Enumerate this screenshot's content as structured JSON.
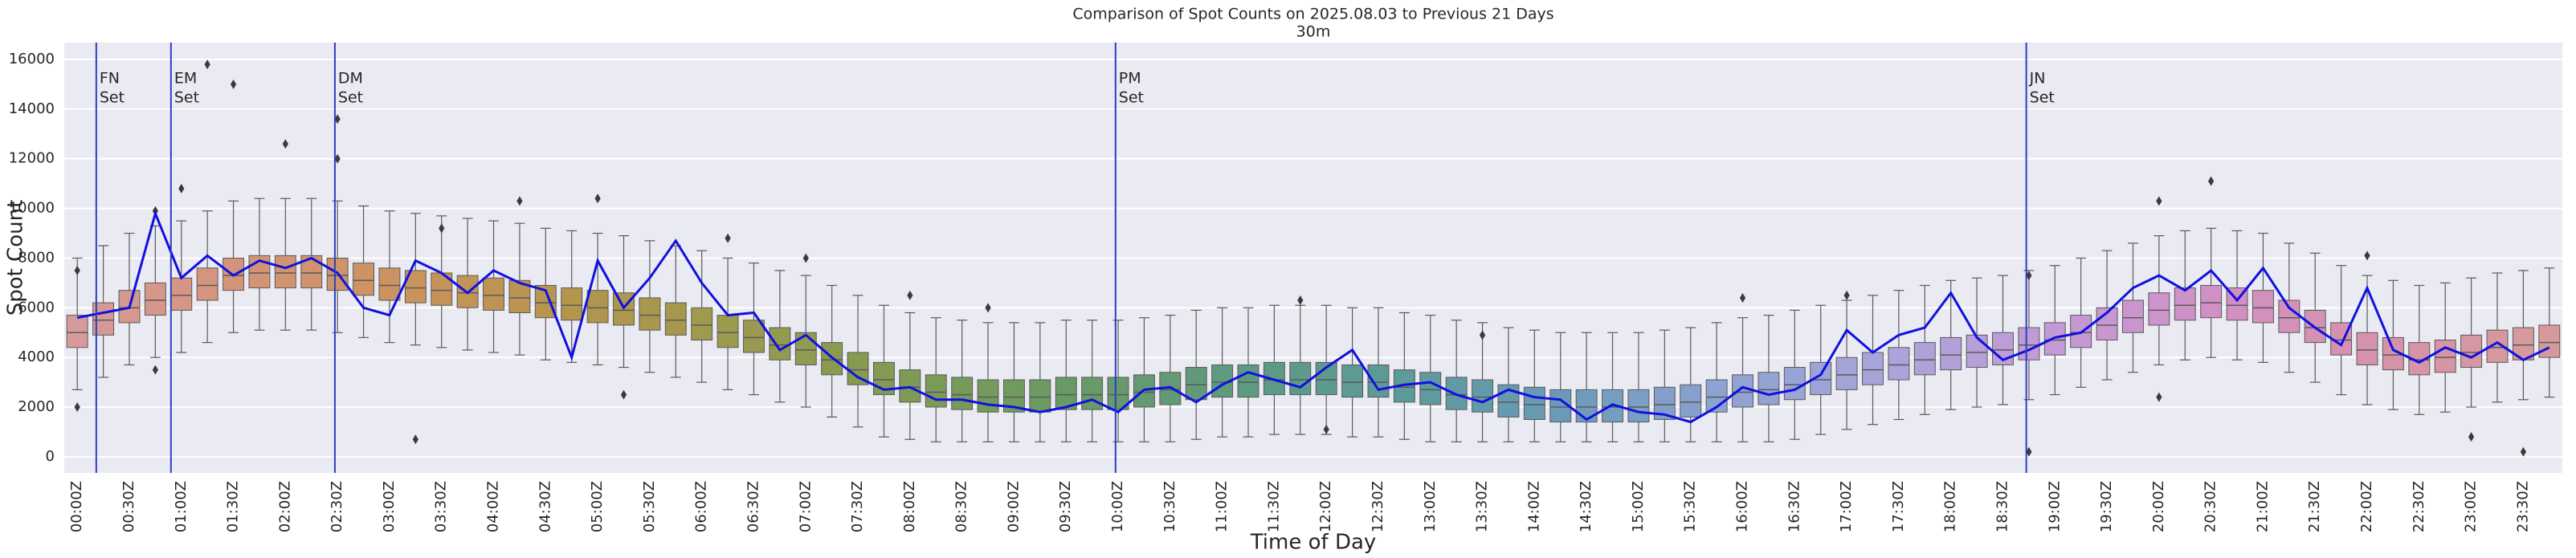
{
  "chart_data": {
    "type": "box",
    "title": "Comparison of Spot Counts on 2025.08.03 to Previous 21 Days",
    "subtitle": "30m",
    "x_label": "Time of Day",
    "y_label": "Spot Count",
    "categories": [
      "00:00Z",
      null,
      "00:30Z",
      null,
      "01:00Z",
      null,
      "01:30Z",
      null,
      "02:00Z",
      null,
      "02:30Z",
      null,
      "03:00Z",
      null,
      "03:30Z",
      null,
      "04:00Z",
      null,
      "04:30Z",
      null,
      "05:00Z",
      null,
      "05:30Z",
      null,
      "06:00Z",
      null,
      "06:30Z",
      null,
      "07:00Z",
      null,
      "07:30Z",
      null,
      "08:00Z",
      null,
      "08:30Z",
      null,
      "09:00Z",
      null,
      "09:30Z",
      null,
      "10:00Z",
      null,
      "10:30Z",
      null,
      "11:00Z",
      null,
      "11:30Z",
      null,
      "12:00Z",
      null,
      "12:30Z",
      null,
      "13:00Z",
      null,
      "13:30Z",
      null,
      "14:00Z",
      null,
      "14:30Z",
      null,
      "15:00Z",
      null,
      "15:30Z",
      null,
      "16:00Z",
      null,
      "16:30Z",
      null,
      "17:00Z",
      null,
      "17:30Z",
      null,
      "18:00Z",
      null,
      "18:30Z",
      null,
      "19:00Z",
      null,
      "19:30Z",
      null,
      "20:00Z",
      null,
      "20:30Z",
      null,
      "21:00Z",
      null,
      "21:30Z",
      null,
      "22:00Z",
      null,
      "22:30Z",
      null,
      "23:00Z",
      null,
      "23:30Z",
      null
    ],
    "boxes": {
      "whislo": [
        2700,
        3200,
        3700,
        4000,
        4200,
        4600,
        5000,
        5100,
        5100,
        5100,
        5000,
        4800,
        4600,
        4500,
        4400,
        4300,
        4200,
        4100,
        3900,
        3800,
        3700,
        3600,
        3400,
        3200,
        3000,
        2700,
        2500,
        2200,
        2000,
        1600,
        1200,
        800,
        700,
        600,
        600,
        600,
        600,
        600,
        600,
        600,
        600,
        600,
        600,
        700,
        800,
        800,
        900,
        900,
        900,
        800,
        800,
        700,
        600,
        600,
        600,
        600,
        600,
        600,
        600,
        600,
        600,
        600,
        600,
        600,
        600,
        600,
        700,
        900,
        1100,
        1300,
        1500,
        1700,
        1900,
        2000,
        2100,
        2300,
        2500,
        2800,
        3100,
        3400,
        3700,
        3900,
        4000,
        3900,
        3800,
        3400,
        3000,
        2500,
        2100,
        1900,
        1700,
        1800,
        2000,
        2200,
        2300,
        2400
      ],
      "q1": [
        4400,
        4900,
        5400,
        5700,
        5900,
        6300,
        6700,
        6800,
        6800,
        6800,
        6700,
        6500,
        6300,
        6200,
        6100,
        6000,
        5900,
        5800,
        5600,
        5500,
        5400,
        5300,
        5100,
        4900,
        4700,
        4400,
        4200,
        3900,
        3700,
        3300,
        2900,
        2500,
        2200,
        2000,
        1900,
        1800,
        1800,
        1800,
        1900,
        1900,
        1900,
        2000,
        2100,
        2300,
        2400,
        2400,
        2500,
        2500,
        2500,
        2400,
        2400,
        2200,
        2100,
        1900,
        1800,
        1600,
        1500,
        1400,
        1400,
        1400,
        1400,
        1500,
        1600,
        1800,
        2000,
        2100,
        2300,
        2500,
        2700,
        2900,
        3100,
        3300,
        3500,
        3600,
        3700,
        3900,
        4100,
        4400,
        4700,
        5000,
        5300,
        5500,
        5600,
        5500,
        5400,
        5000,
        4600,
        4100,
        3700,
        3500,
        3300,
        3400,
        3600,
        3800,
        3900,
        4000
      ],
      "med": [
        5000,
        5500,
        6000,
        6300,
        6500,
        6900,
        7300,
        7400,
        7400,
        7400,
        7300,
        7100,
        6900,
        6800,
        6700,
        6600,
        6500,
        6400,
        6200,
        6100,
        6000,
        5900,
        5700,
        5500,
        5300,
        5000,
        4800,
        4500,
        4300,
        3900,
        3500,
        3100,
        2800,
        2600,
        2500,
        2400,
        2400,
        2400,
        2500,
        2500,
        2500,
        2600,
        2700,
        2900,
        3000,
        3000,
        3100,
        3100,
        3100,
        3000,
        3000,
        2800,
        2700,
        2500,
        2400,
        2200,
        2100,
        2000,
        2000,
        2000,
        2000,
        2100,
        2200,
        2400,
        2600,
        2700,
        2900,
        3100,
        3300,
        3500,
        3700,
        3900,
        4100,
        4200,
        4300,
        4500,
        4700,
        5000,
        5300,
        5600,
        5900,
        6100,
        6200,
        6100,
        6000,
        5600,
        5200,
        4700,
        4300,
        4100,
        3900,
        4000,
        4200,
        4400,
        4500,
        4600
      ],
      "q3": [
        5700,
        6200,
        6700,
        7000,
        7200,
        7600,
        8000,
        8100,
        8100,
        8100,
        8000,
        7800,
        7600,
        7500,
        7400,
        7300,
        7200,
        7100,
        6900,
        6800,
        6700,
        6600,
        6400,
        6200,
        6000,
        5700,
        5500,
        5200,
        5000,
        4600,
        4200,
        3800,
        3500,
        3300,
        3200,
        3100,
        3100,
        3100,
        3200,
        3200,
        3200,
        3300,
        3400,
        3600,
        3700,
        3700,
        3800,
        3800,
        3800,
        3700,
        3700,
        3500,
        3400,
        3200,
        3100,
        2900,
        2800,
        2700,
        2700,
        2700,
        2700,
        2800,
        2900,
        3100,
        3300,
        3400,
        3600,
        3800,
        4000,
        4200,
        4400,
        4600,
        4800,
        4900,
        5000,
        5200,
        5400,
        5700,
        6000,
        6300,
        6600,
        6800,
        6900,
        6800,
        6700,
        6300,
        5900,
        5400,
        5000,
        4800,
        4600,
        4700,
        4900,
        5100,
        5200,
        5300
      ],
      "whishi": [
        8000,
        8500,
        9000,
        9300,
        9500,
        9900,
        10300,
        10400,
        10400,
        10400,
        10300,
        10100,
        9900,
        9800,
        9700,
        9600,
        9500,
        9400,
        9200,
        9100,
        9000,
        8900,
        8700,
        8500,
        8300,
        8000,
        7800,
        7500,
        7300,
        6900,
        6500,
        6100,
        5800,
        5600,
        5500,
        5400,
        5400,
        5400,
        5500,
        5500,
        5500,
        5600,
        5700,
        5900,
        6000,
        6000,
        6100,
        6100,
        6100,
        6000,
        6000,
        5800,
        5700,
        5500,
        5400,
        5200,
        5100,
        5000,
        5000,
        5000,
        5000,
        5100,
        5200,
        5400,
        5600,
        5700,
        5900,
        6100,
        6300,
        6500,
        6700,
        6900,
        7100,
        7200,
        7300,
        7500,
        7700,
        8000,
        8300,
        8600,
        8900,
        9100,
        9200,
        9100,
        9000,
        8600,
        8200,
        7700,
        7300,
        7100,
        6900,
        7000,
        7200,
        7400,
        7500,
        7600
      ]
    },
    "palette": [
      "#d69a9a",
      "#d49478",
      "#c9935e",
      "#b4954c",
      "#9c9a4e",
      "#7f9a54",
      "#6a9a64",
      "#5e9a80",
      "#5c9a98",
      "#6a9ab8",
      "#8ea2d2",
      "#aaa4da",
      "#c49ad6",
      "#d090c4",
      "#d692aa",
      "#d69a9a"
    ],
    "line": {
      "color": "#1010e0",
      "values": [
        5600,
        5800,
        6000,
        9800,
        7200,
        8100,
        7300,
        7900,
        7600,
        8000,
        7400,
        6000,
        5700,
        7900,
        7400,
        6600,
        7500,
        7000,
        6700,
        4000,
        7900,
        6000,
        7200,
        8700,
        7000,
        5700,
        5800,
        4300,
        4900,
        4000,
        3200,
        2700,
        2800,
        2300,
        2300,
        2100,
        2000,
        1800,
        2000,
        2300,
        1800,
        2700,
        2800,
        2200,
        2900,
        3400,
        3100,
        2800,
        3600,
        4300,
        2700,
        2900,
        3000,
        2500,
        2200,
        2700,
        2400,
        2300,
        1500,
        2100,
        1800,
        1700,
        1400,
        2000,
        2800,
        2500,
        2700,
        3300,
        5100,
        4200,
        4900,
        5200,
        6600,
        4800,
        3900,
        4300,
        4800,
        5000,
        5800,
        6800,
        7300,
        6700,
        7500,
        6300,
        7600,
        6000,
        5200,
        4500,
        6800,
        4300,
        3800,
        4400,
        4000,
        4600,
        3900,
        4400
      ]
    },
    "outliers": {
      "color": "#3a3a3a",
      "points": [
        {
          "x": 0,
          "y": 7500
        },
        {
          "x": 0,
          "y": 2000
        },
        {
          "x": 3,
          "y": 9900
        },
        {
          "x": 3,
          "y": 3500
        },
        {
          "x": 4,
          "y": 10800
        },
        {
          "x": 5,
          "y": 15800
        },
        {
          "x": 6,
          "y": 15000
        },
        {
          "x": 8,
          "y": 12600
        },
        {
          "x": 10,
          "y": 13600
        },
        {
          "x": 10,
          "y": 12000
        },
        {
          "x": 13,
          "y": 700
        },
        {
          "x": 14,
          "y": 9200
        },
        {
          "x": 17,
          "y": 10300
        },
        {
          "x": 20,
          "y": 10400
        },
        {
          "x": 21,
          "y": 2500
        },
        {
          "x": 25,
          "y": 8800
        },
        {
          "x": 28,
          "y": 8000
        },
        {
          "x": 32,
          "y": 6500
        },
        {
          "x": 35,
          "y": 6000
        },
        {
          "x": 47,
          "y": 6300
        },
        {
          "x": 48,
          "y": 1100
        },
        {
          "x": 54,
          "y": 4900
        },
        {
          "x": 64,
          "y": 6400
        },
        {
          "x": 68,
          "y": 6500
        },
        {
          "x": 75,
          "y": 7300
        },
        {
          "x": 75,
          "y": 200
        },
        {
          "x": 80,
          "y": 10300
        },
        {
          "x": 82,
          "y": 11100
        },
        {
          "x": 80,
          "y": 2400
        },
        {
          "x": 88,
          "y": 8100
        },
        {
          "x": 92,
          "y": 800
        },
        {
          "x": 94,
          "y": 200
        }
      ]
    },
    "vlines": {
      "color": "#2b3fc2",
      "lines": [
        {
          "x": 0.73,
          "label": [
            "FN",
            "Set"
          ]
        },
        {
          "x": 3.6,
          "label": [
            "EM",
            "Set"
          ]
        },
        {
          "x": 9.9,
          "label": [
            "DM",
            "Set"
          ]
        },
        {
          "x": 39.9,
          "label": [
            "PM",
            "Set"
          ]
        },
        {
          "x": 74.9,
          "label": [
            "JN",
            "Set"
          ]
        }
      ]
    },
    "ylim": [
      -650,
      16680
    ],
    "yticks": [
      0,
      2000,
      4000,
      6000,
      8000,
      10000,
      12000,
      14000,
      16000
    ],
    "grid": true
  }
}
